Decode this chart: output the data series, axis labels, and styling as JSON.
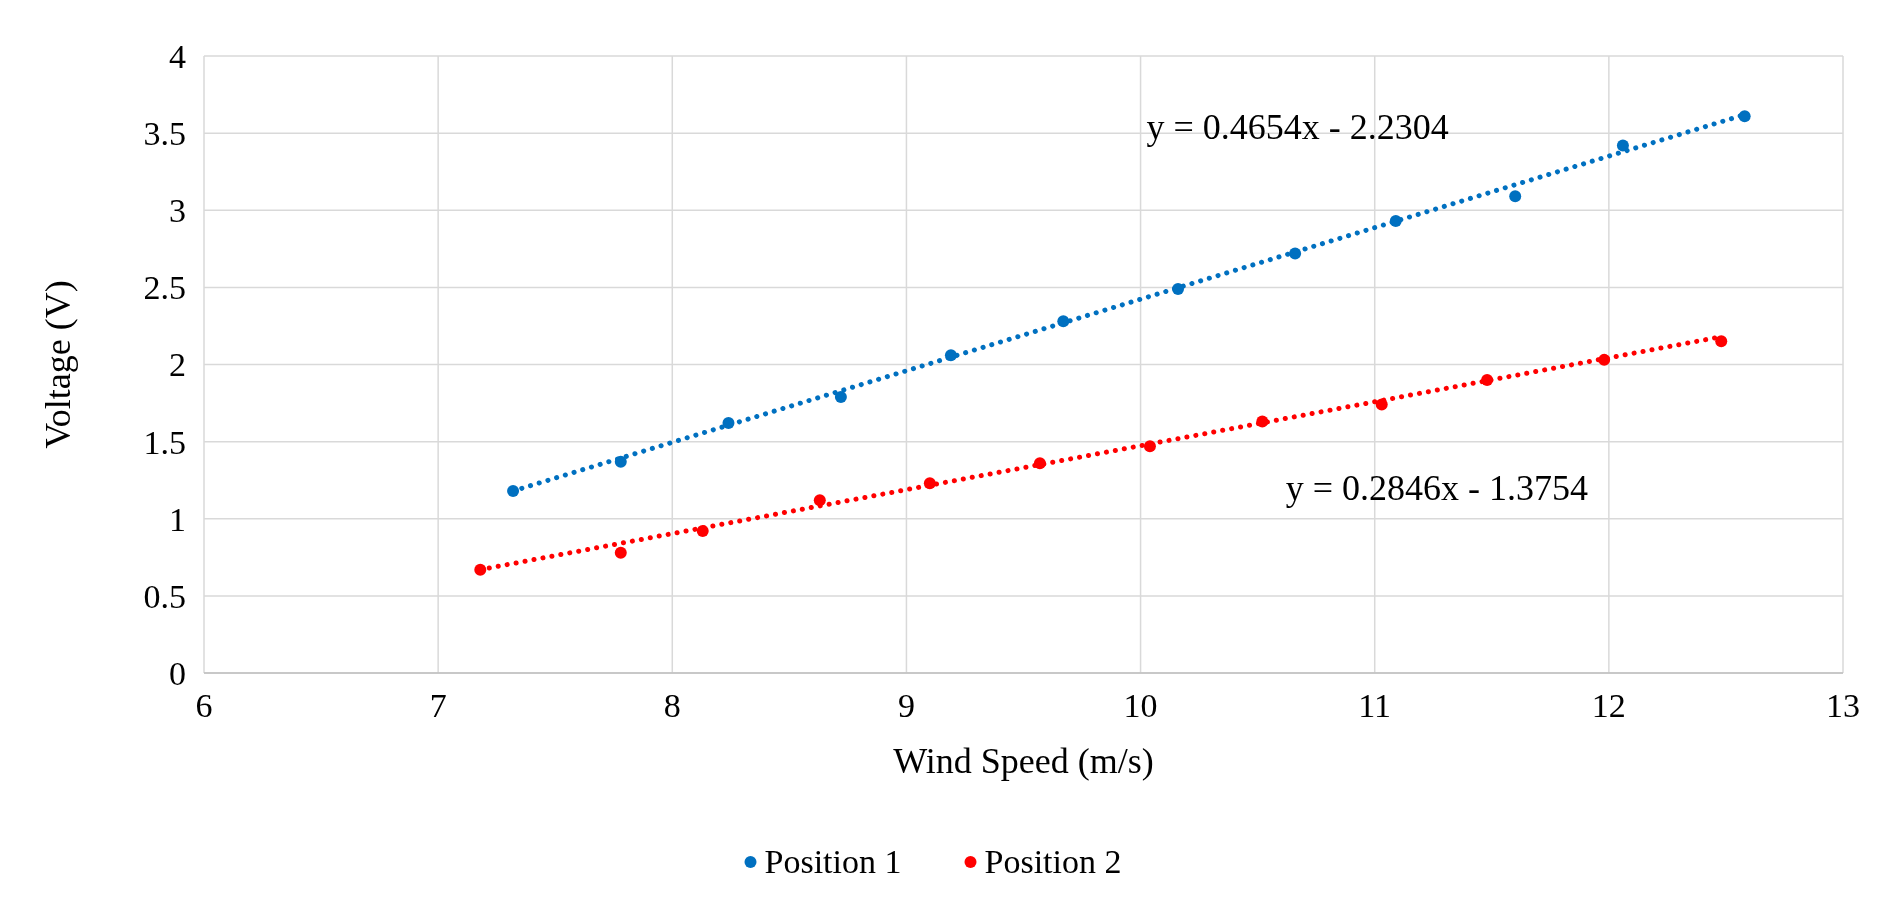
{
  "chart_data": {
    "type": "scatter",
    "xlabel": "Wind Speed (m/s)",
    "ylabel": "Voltage (V)",
    "xlim": [
      6,
      13
    ],
    "xticks": [
      6,
      7,
      8,
      9,
      10,
      11,
      12,
      13
    ],
    "ylim": [
      0,
      4
    ],
    "yticks": [
      0,
      0.5,
      1,
      1.5,
      2,
      2.5,
      3,
      3.5,
      4
    ],
    "grid": true,
    "legend": "bottom",
    "marker": "circle",
    "series": [
      {
        "name": "Position 1",
        "color": "#0070c0",
        "x": [
          7.32,
          7.78,
          8.24,
          8.72,
          9.19,
          9.67,
          10.16,
          10.66,
          11.09,
          11.6,
          12.06,
          12.58
        ],
        "values": [
          1.18,
          1.37,
          1.62,
          1.79,
          2.06,
          2.28,
          2.49,
          2.72,
          2.93,
          3.09,
          3.42,
          3.61
        ]
      },
      {
        "name": "Position 2",
        "color": "#ff0000",
        "x": [
          7.18,
          7.78,
          8.13,
          8.63,
          9.1,
          9.57,
          10.04,
          10.52,
          11.03,
          11.48,
          11.98,
          12.48
        ],
        "values": [
          0.67,
          0.78,
          0.92,
          1.12,
          1.23,
          1.36,
          1.47,
          1.63,
          1.74,
          1.9,
          2.03,
          2.15
        ]
      },
      {
        "type": "line",
        "color": "#0070c0",
        "line_style": "dotted",
        "marker": "none",
        "x": [
          7.32,
          12.58
        ],
        "values": [
          1.18,
          3.62
        ]
      },
      {
        "type": "line",
        "color": "#ff0000",
        "line_style": "dotted",
        "marker": "none",
        "x": [
          7.18,
          12.48
        ],
        "values": [
          0.67,
          2.18
        ]
      }
    ],
    "annotations": [
      "y = 0.4654x - 2.2304",
      "y = 0.2846x - 1.3754"
    ]
  }
}
